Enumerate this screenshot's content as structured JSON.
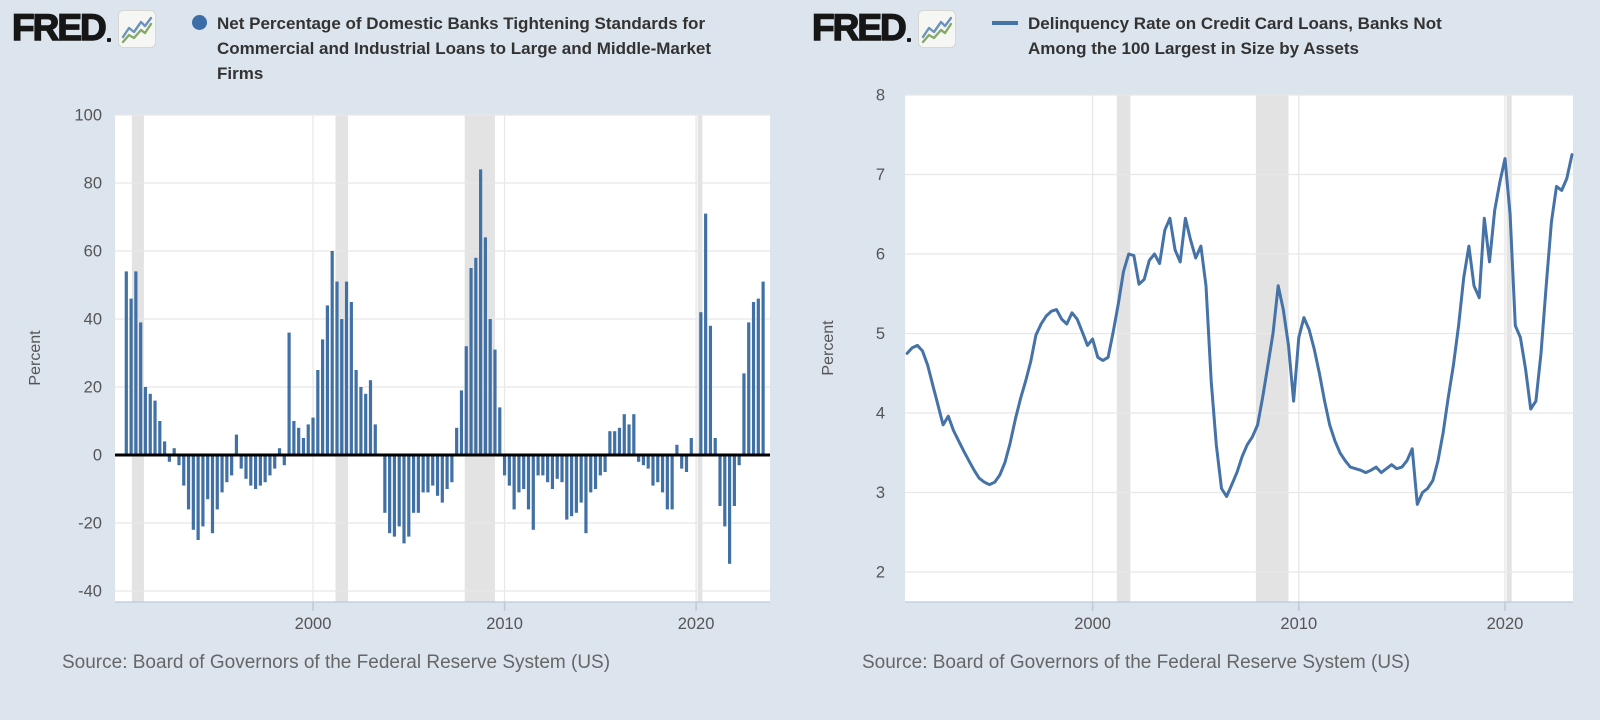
{
  "page": {
    "background": "#dce4ee",
    "logo_text": "FRED",
    "source_note": "Source: Board of Governors of the Federal Reserve System (US)"
  },
  "chart_data": [
    {
      "type": "bar",
      "title": "Net Percentage of Domestic Banks Tightening Standards for Commercial and Industrial Loans to Large and Middle-Market Firms",
      "ylabel": "Percent",
      "legend_marker": "circle",
      "x_start": 1990.25,
      "x_step": 0.25,
      "x_unit": "quarterly",
      "values": [
        54,
        46,
        54,
        39,
        20,
        18,
        16,
        10,
        4,
        -2,
        2,
        -3,
        -9,
        -16,
        -22,
        -25,
        -21,
        -13,
        -23,
        -16,
        -11,
        -8,
        -6,
        6,
        -4,
        -7,
        -9,
        -10,
        -9,
        -8,
        -6,
        -4,
        2,
        -3,
        36,
        10,
        8,
        5,
        9,
        11,
        25,
        34,
        44,
        60,
        51,
        40,
        51,
        45,
        25,
        20,
        18,
        22,
        9,
        0,
        -17,
        -23,
        -24,
        -21,
        -26,
        -24,
        -17,
        -17,
        -11,
        -11,
        -9,
        -12,
        -14,
        -10,
        -8,
        8,
        19,
        32,
        55,
        58,
        84,
        64,
        40,
        31,
        14,
        -6,
        -9,
        -16,
        -11,
        -10,
        -16,
        -22,
        -6,
        -6,
        -8,
        -10,
        -7,
        -8,
        -19,
        -18,
        -17,
        -14,
        -23,
        -11,
        -10,
        -6,
        -5,
        7,
        7,
        8,
        12,
        9,
        12,
        -2,
        -3,
        -4,
        -9,
        -8,
        -11,
        -16,
        -16,
        3,
        -4,
        -5,
        5,
        0,
        42,
        71,
        38,
        5,
        -15,
        -21,
        -32,
        -15,
        -3,
        24,
        39,
        45,
        46,
        51
      ],
      "ylim": [
        -40,
        100
      ],
      "yticks": [
        100,
        80,
        60,
        40,
        20,
        0,
        -20,
        -40
      ],
      "xticks": [
        2000,
        2010,
        2020
      ],
      "grid": true,
      "zero_line": true,
      "legend_position": "top",
      "bar_color": "#4170a4",
      "series_color": "#3d6da8",
      "grid_color": "#e8e8e8",
      "recession_color": "#e3e3e3",
      "zero_line_color": "#000000",
      "recessions": [
        [
          1990.54,
          1991.17
        ],
        [
          2001.17,
          2001.83
        ],
        [
          2007.92,
          2009.5
        ],
        [
          2020.08,
          2020.33
        ]
      ]
    },
    {
      "type": "line",
      "title": "Delinquency Rate on Credit Card Loans, Banks Not Among the 100 Largest in Size by Assets",
      "ylabel": "Percent",
      "legend_marker": "line",
      "x_start": 1991.0,
      "x_step": 0.25,
      "x_unit": "quarterly",
      "values": [
        4.75,
        4.82,
        4.85,
        4.78,
        4.6,
        4.35,
        4.1,
        3.85,
        3.96,
        3.78,
        3.65,
        3.52,
        3.4,
        3.28,
        3.18,
        3.13,
        3.1,
        3.13,
        3.22,
        3.38,
        3.62,
        3.92,
        4.18,
        4.4,
        4.65,
        4.98,
        5.12,
        5.22,
        5.28,
        5.3,
        5.18,
        5.12,
        5.26,
        5.18,
        5.02,
        4.85,
        4.93,
        4.7,
        4.66,
        4.7,
        5.02,
        5.38,
        5.78,
        6.0,
        5.98,
        5.62,
        5.68,
        5.92,
        6.0,
        5.88,
        6.3,
        6.45,
        6.05,
        5.9,
        6.45,
        6.18,
        5.95,
        6.1,
        5.6,
        4.4,
        3.6,
        3.05,
        2.95,
        3.1,
        3.25,
        3.45,
        3.6,
        3.7,
        3.85,
        4.2,
        4.6,
        5.0,
        5.6,
        5.3,
        4.85,
        4.15,
        4.95,
        5.2,
        5.05,
        4.8,
        4.5,
        4.15,
        3.85,
        3.65,
        3.5,
        3.4,
        3.32,
        3.3,
        3.28,
        3.25,
        3.28,
        3.32,
        3.25,
        3.3,
        3.35,
        3.3,
        3.32,
        3.4,
        3.55,
        2.85,
        3.0,
        3.05,
        3.15,
        3.4,
        3.75,
        4.2,
        4.6,
        5.1,
        5.7,
        6.1,
        5.6,
        5.45,
        6.45,
        5.9,
        6.55,
        6.9,
        7.2,
        6.5,
        5.1,
        4.95,
        4.55,
        4.05,
        4.15,
        4.75,
        5.6,
        6.4,
        6.85,
        6.8,
        6.95,
        7.25
      ],
      "ylim": [
        2,
        8
      ],
      "yticks": [
        8,
        7,
        6,
        5,
        4,
        3,
        2
      ],
      "xticks": [
        2000,
        2010,
        2020
      ],
      "grid": true,
      "zero_line": false,
      "legend_position": "top",
      "line_color": "#4572a7",
      "series_color": "#4572a7",
      "grid_color": "#e8e8e8",
      "recession_color": "#e3e3e3",
      "recessions": [
        [
          2001.17,
          2001.83
        ],
        [
          2007.92,
          2009.5
        ],
        [
          2020.08,
          2020.33
        ]
      ]
    }
  ]
}
